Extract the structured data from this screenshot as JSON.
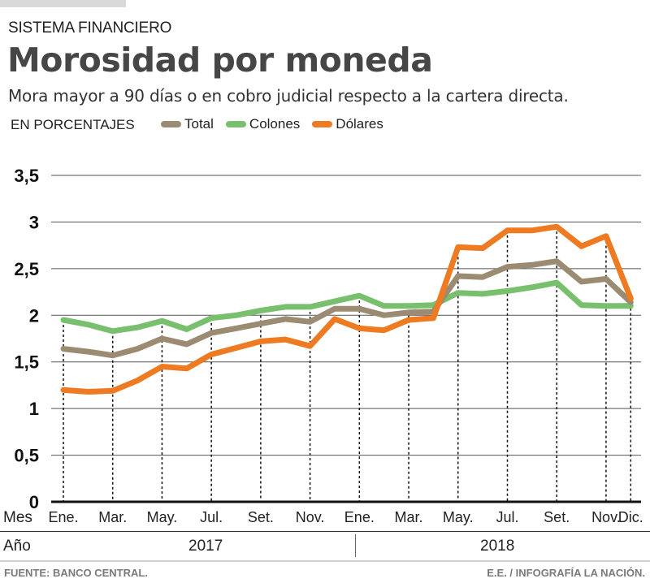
{
  "header": {
    "kicker": "SISTEMA FINANCIERO",
    "title": "Morosidad por moneda",
    "subtitle": "Mora mayor a 90 días o en cobro judicial respecto a la cartera directa.",
    "units": "EN PORCENTAJES"
  },
  "legend": [
    {
      "label": "Total",
      "color": "#9b8b72"
    },
    {
      "label": "Colones",
      "color": "#79c06e"
    },
    {
      "label": "Dólares",
      "color": "#ee7a22"
    }
  ],
  "axis": {
    "x_row_label": "Mes",
    "year_row_label": "Año",
    "years": [
      "2017",
      "2018"
    ]
  },
  "footer": {
    "source": "FUENTE: BANCO CENTRAL.",
    "credit": "E.E. / INFOGRAFÍA  LA NACIÓN."
  },
  "chart_data": {
    "type": "line",
    "title": "Morosidad por moneda",
    "subtitle": "Mora mayor a 90 días o en cobro judicial respecto a la cartera directa.",
    "ylabel": "EN PORCENTAJES",
    "xlabel": "Mes / Año",
    "ylim": [
      0,
      3.5
    ],
    "yticks": [
      0,
      0.5,
      1,
      1.5,
      2,
      2.5,
      3,
      3.5
    ],
    "ytick_labels": [
      "0",
      "0,5",
      "1",
      "1,5",
      "2",
      "2,5",
      "3",
      "3,5"
    ],
    "grid": true,
    "legend_position": "top-left",
    "x": [
      "Ene. 2017",
      "Feb. 2017",
      "Mar. 2017",
      "Abr. 2017",
      "May. 2017",
      "Jun. 2017",
      "Jul. 2017",
      "Ago. 2017",
      "Set. 2017",
      "Oct. 2017",
      "Nov. 2017",
      "Dic. 2017",
      "Ene. 2018",
      "Feb. 2018",
      "Mar. 2018",
      "Abr. 2018",
      "May. 2018",
      "Jun. 2018",
      "Jul. 2018",
      "Ago. 2018",
      "Set. 2018",
      "Oct. 2018",
      "Nov. 2018",
      "Dic. 2018"
    ],
    "xtick_indices": [
      0,
      2,
      4,
      6,
      8,
      10,
      12,
      14,
      16,
      18,
      20,
      22,
      23
    ],
    "xtick_labels": [
      "Ene.",
      "Mar.",
      "May.",
      "Jul.",
      "Set.",
      "Nov.",
      "Ene.",
      "Mar.",
      "May.",
      "Jul.",
      "Set.",
      "Nov.",
      "Dic."
    ],
    "series": [
      {
        "name": "Colones",
        "color": "#79c06e",
        "values": [
          1.95,
          1.9,
          1.83,
          1.87,
          1.94,
          1.85,
          1.97,
          2.0,
          2.05,
          2.09,
          2.09,
          2.15,
          2.21,
          2.1,
          2.1,
          2.11,
          2.24,
          2.23,
          2.26,
          2.3,
          2.35,
          2.11,
          2.1,
          2.1
        ]
      },
      {
        "name": "Total",
        "color": "#9b8b72",
        "values": [
          1.64,
          1.61,
          1.57,
          1.64,
          1.75,
          1.69,
          1.81,
          1.86,
          1.91,
          1.96,
          1.93,
          2.07,
          2.07,
          2.0,
          2.03,
          2.04,
          2.42,
          2.41,
          2.52,
          2.54,
          2.58,
          2.36,
          2.39,
          2.14
        ]
      },
      {
        "name": "Dólares",
        "color": "#ee7a22",
        "values": [
          1.2,
          1.18,
          1.19,
          1.3,
          1.45,
          1.43,
          1.58,
          1.65,
          1.72,
          1.74,
          1.67,
          1.96,
          1.86,
          1.84,
          1.95,
          1.97,
          2.73,
          2.72,
          2.91,
          2.91,
          2.95,
          2.74,
          2.85,
          2.18
        ]
      }
    ]
  }
}
